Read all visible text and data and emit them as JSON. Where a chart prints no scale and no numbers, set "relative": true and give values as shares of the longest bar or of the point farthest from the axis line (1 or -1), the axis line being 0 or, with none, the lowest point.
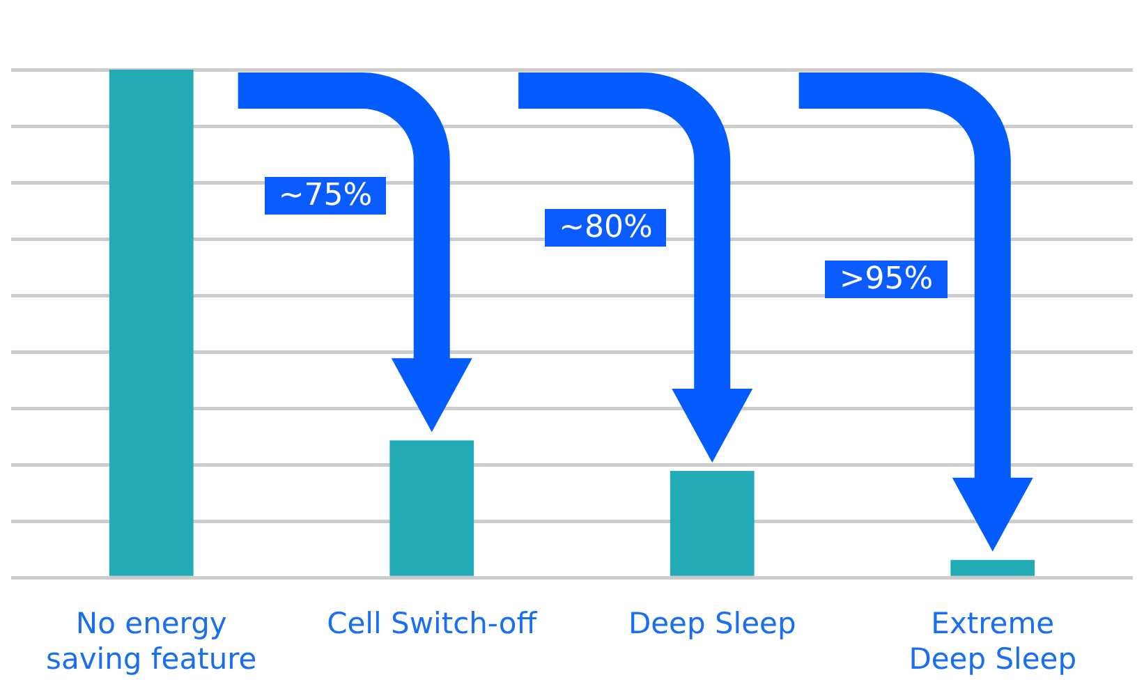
{
  "chart_data": {
    "type": "bar",
    "relative": true,
    "categories": [
      "No energy saving feature",
      "Cell Switch-off",
      "Deep Sleep",
      "Extreme Deep Sleep"
    ],
    "values": [
      1,
      0.27,
      0.21,
      0.035
    ],
    "color": "#22abb5",
    "grid": "y",
    "legend": false,
    "annotations": [
      "~75%",
      "~80%",
      ">95%"
    ]
  }
}
